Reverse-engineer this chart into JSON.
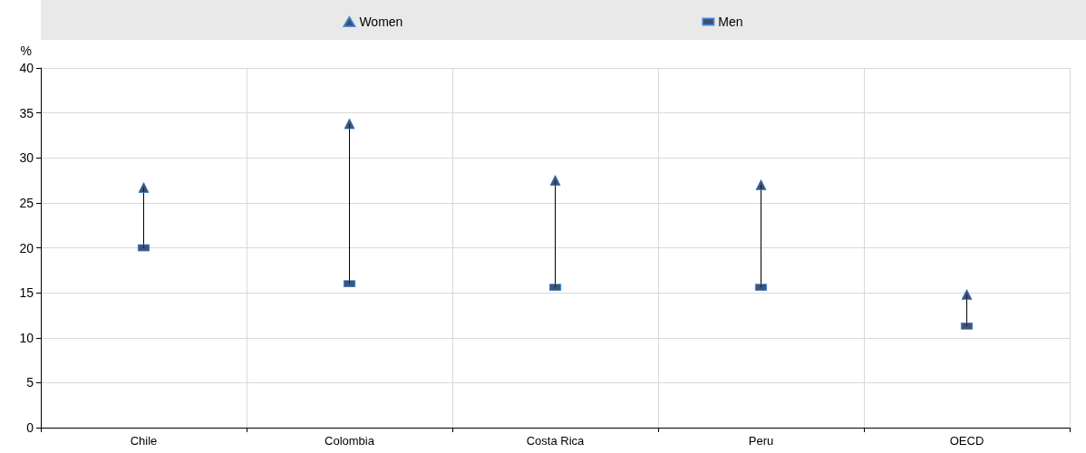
{
  "chart_data": {
    "type": "scatter",
    "ylabel": "%",
    "categories": [
      "Chile",
      "Colombia",
      "Costa Rica",
      "Peru",
      "OECD"
    ],
    "series": [
      {
        "name": "Women",
        "color": "#14284b",
        "marker": "triangle",
        "values": [
          26.7,
          33.8,
          27.5,
          27.0,
          14.8
        ]
      },
      {
        "name": "Men",
        "color": "#14284b",
        "marker": "square",
        "values": [
          20.0,
          16.0,
          15.6,
          15.6,
          11.3
        ]
      }
    ],
    "ylim": [
      0,
      40
    ],
    "yticks": [
      0,
      5,
      10,
      15,
      20,
      25,
      30,
      35,
      40
    ],
    "grid": true,
    "legend": "top"
  }
}
